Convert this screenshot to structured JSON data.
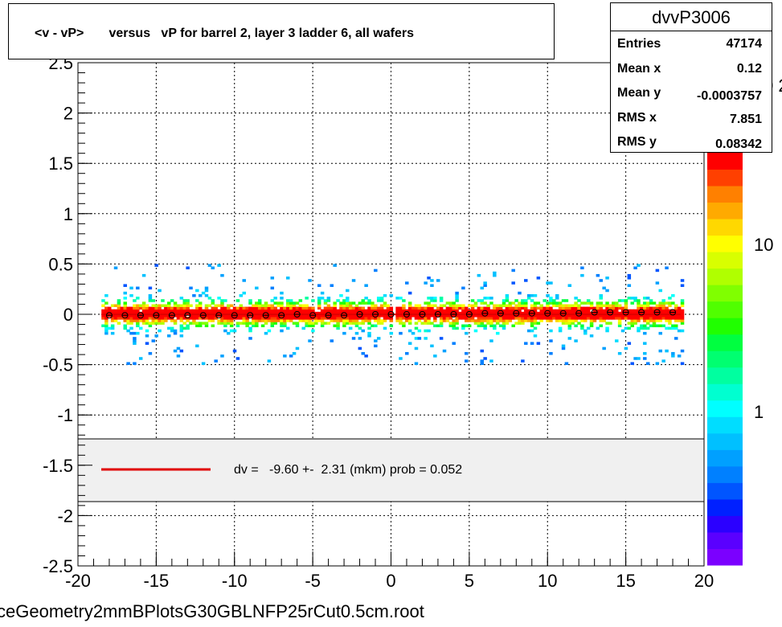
{
  "title": "<v - vP>       versus   vP for barrel 2, layer 3 ladder 6, all wafers",
  "stats": {
    "name": "dvvP3006",
    "rows": [
      {
        "label": "Entries",
        "value": "47174"
      },
      {
        "label": "Mean x",
        "value": "0.12"
      },
      {
        "label": "Mean y",
        "value": "-0.0003757"
      },
      {
        "label": "RMS x",
        "value": "7.851"
      },
      {
        "label": "RMS y",
        "value": "0.08342"
      }
    ]
  },
  "fit_legend": "dv =   -9.60 +-  2.31 (mkm) prob = 0.052",
  "filename": "ceGeometry2mmBPlotsG30GBLNFP25rCut0.5cm.root",
  "colors": {
    "fit_line": "#e00000",
    "legend_fill": "#f0f0f0",
    "palette": [
      "#7b00ff",
      "#5a00ff",
      "#2b00ff",
      "#0020ff",
      "#0055ff",
      "#0080ff",
      "#00a0ff",
      "#00c0ff",
      "#00ddff",
      "#00ffff",
      "#00ffd0",
      "#00ffa0",
      "#00ff70",
      "#00ff40",
      "#20ff00",
      "#50ff00",
      "#80ff00",
      "#b0ff00",
      "#d8ff00",
      "#ffff00",
      "#ffd800",
      "#ffaa00",
      "#ff8000",
      "#ff4000",
      "#ff0000"
    ]
  },
  "chart_data": {
    "type": "heatmap",
    "title": "<v - vP>       versus   vP for barrel 2, layer 3 ladder 6, all wafers",
    "xlim": [
      -20,
      20
    ],
    "ylim": [
      -2.5,
      2.5
    ],
    "x_ticks": [
      "-20",
      "-15",
      "-10",
      "-5",
      "0",
      "5",
      "10",
      "15",
      "20"
    ],
    "y_ticks": [
      "-2.5",
      "-2",
      "-1.5",
      "-1",
      "-0.5",
      "0",
      "0.5",
      "1",
      "1.5",
      "2",
      "2.5"
    ],
    "colorbar_labels": [
      "1",
      "10"
    ],
    "colorbar_partial_label": "0 2",
    "grid": true,
    "occupied_x_range": [
      -18.5,
      18.5
    ],
    "occupied_y_range": [
      -0.5,
      0.5
    ],
    "profile_points": {
      "x": [
        -18,
        -17,
        -16,
        -15,
        -14,
        -13,
        -12,
        -11,
        -10,
        -9,
        -8,
        -7,
        -6,
        -5,
        -4,
        -3,
        -2,
        -1,
        0,
        1,
        2,
        3,
        4,
        5,
        6,
        7,
        8,
        9,
        10,
        11,
        12,
        13,
        14,
        15,
        16,
        17,
        18
      ],
      "y": [
        -0.01,
        -0.01,
        -0.01,
        -0.01,
        -0.01,
        -0.01,
        -0.01,
        -0.01,
        -0.01,
        -0.01,
        -0.01,
        -0.01,
        0.0,
        -0.01,
        -0.01,
        -0.01,
        0.0,
        0.0,
        0.0,
        0.0,
        0.0,
        0.0,
        0.0,
        0.0,
        0.01,
        0.01,
        0.01,
        0.01,
        0.01,
        0.01,
        0.01,
        0.02,
        0.02,
        0.02,
        0.02,
        0.02,
        0.02
      ]
    },
    "fit": {
      "slope": 0.0,
      "offset_mkm": -9.6,
      "offset_err_mkm": 2.31,
      "prob": 0.052
    }
  }
}
